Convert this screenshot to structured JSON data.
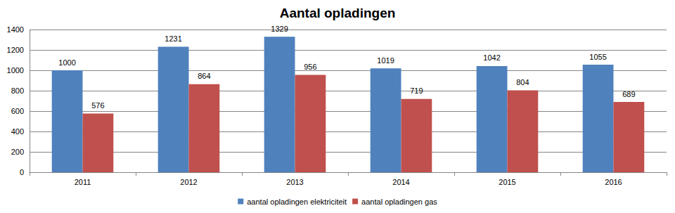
{
  "chart_data": {
    "type": "bar",
    "title": "Aantal opladingen",
    "categories": [
      "2011",
      "2012",
      "2013",
      "2014",
      "2015",
      "2016"
    ],
    "series": [
      {
        "name": "aantal opladingen elektriciteit",
        "color": "#4f81bd",
        "values": [
          1000,
          1231,
          1329,
          1019,
          1042,
          1055
        ]
      },
      {
        "name": "aantal opladingen gas",
        "color": "#c0504d",
        "values": [
          576,
          864,
          956,
          719,
          804,
          689
        ]
      }
    ],
    "ylim": [
      0,
      1400
    ],
    "yticks": [
      0,
      200,
      400,
      600,
      800,
      1000,
      1200,
      1400
    ],
    "grid": true,
    "legend": "bottom",
    "data_labels": true
  }
}
